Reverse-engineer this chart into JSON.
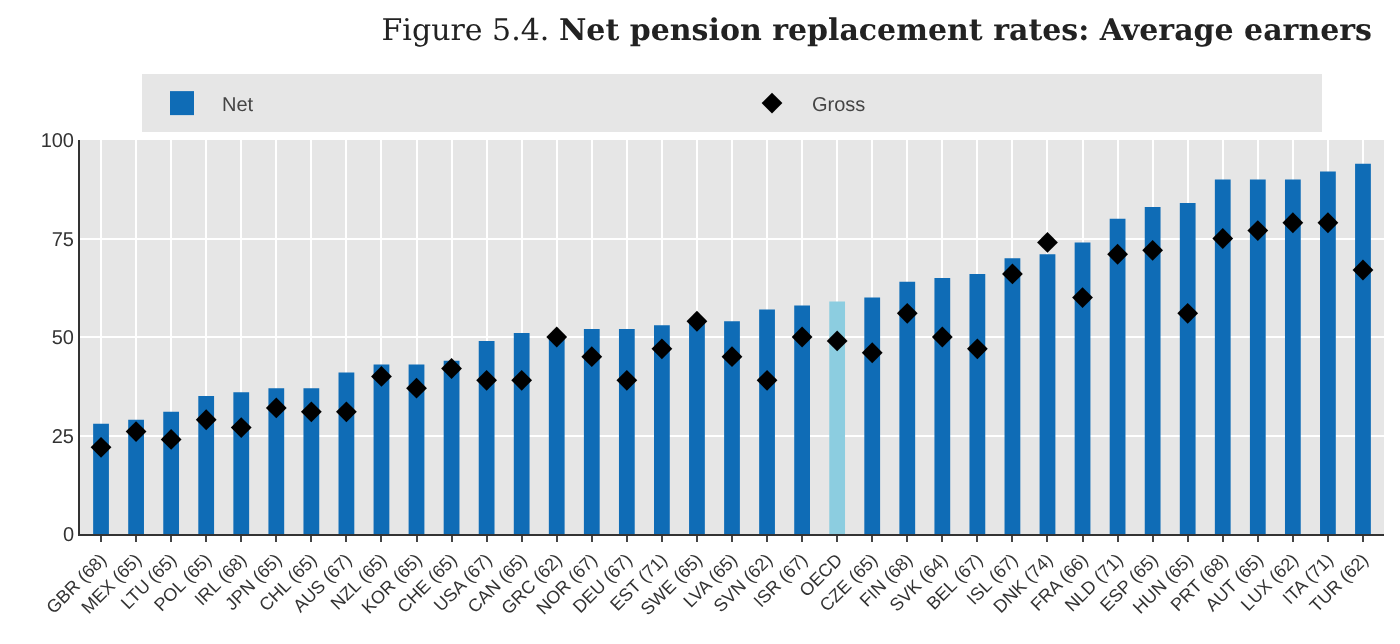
{
  "chart_data": {
    "type": "bar",
    "title": "Figure 5.4. **Net pension replacement rates: Average earners**",
    "categories": [
      "GBR (68)",
      "MEX (65)",
      "LTU (65)",
      "POL (65)",
      "IRL (68)",
      "JPN (65)",
      "CHL (65)",
      "AUS (67)",
      "NZL (65)",
      "KOR (65)",
      "CHE (65)",
      "USA (67)",
      "CAN (65)",
      "GRC (62)",
      "NOR (67)",
      "DEU (67)",
      "EST (71)",
      "SWE (65)",
      "LVA (65)",
      "SVN (62)",
      "ISR (67)",
      "OECD",
      "CZE (65)",
      "FIN (68)",
      "SVK (64)",
      "BEL (67)",
      "ISL (67)",
      "DNK (74)",
      "FRA (66)",
      "NLD (71)",
      "ESP (65)",
      "HUN (65)",
      "PRT (68)",
      "AUT (65)",
      "LUX (62)",
      "ITA (71)",
      "TUR (62)"
    ],
    "series": [
      {
        "name": "Net",
        "color": "#0f6cb6",
        "colors": [
          null,
          null,
          null,
          null,
          null,
          null,
          null,
          null,
          null,
          null,
          null,
          null,
          null,
          null,
          null,
          null,
          null,
          null,
          null,
          null,
          null,
          "#8ccde0",
          "#0f6cb6",
          "#0f6cb6",
          "#0f6cb6",
          "#0f6cb6",
          "#0f6cb6",
          "#0f6cb6",
          "#0f6cb6",
          "#0f6cb6",
          "#0f6cb6",
          "#0f6cb6",
          "#0f6cb6",
          "#0f6cb6",
          "#0f6cb6",
          "#0f6cb6",
          "#0f6cb6"
        ],
        "values": [
          28,
          29,
          31,
          35,
          36,
          37,
          37,
          41,
          43,
          43,
          44,
          49,
          51,
          50,
          52,
          52,
          53,
          54,
          54,
          57,
          58,
          59,
          60,
          64,
          65,
          66,
          70,
          71,
          74,
          80,
          83,
          84,
          90,
          90,
          90,
          92,
          94
        ]
      },
      {
        "name": "Gross",
        "type": "scatter",
        "marker": "diamond",
        "color": "#000000",
        "values": [
          22,
          26,
          24,
          29,
          27,
          32,
          31,
          31,
          40,
          37,
          42,
          39,
          39,
          50,
          45,
          39,
          47,
          54,
          45,
          39,
          50,
          49,
          46,
          56,
          50,
          47,
          66,
          74,
          60,
          71,
          72,
          56,
          75,
          77,
          79,
          79,
          67
        ]
      }
    ],
    "ylim": [
      0,
      100
    ],
    "yticks": [
      0,
      25,
      50,
      75,
      100
    ],
    "grid": true,
    "legend": "top"
  }
}
